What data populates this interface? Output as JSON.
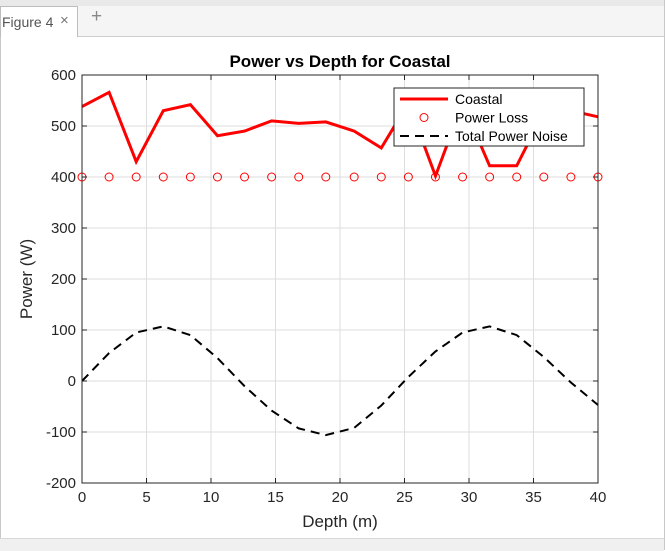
{
  "window": {
    "tab_label": "Figure 4",
    "tab_close_glyph": "×",
    "add_tab_glyph": "+"
  },
  "chart_data": {
    "type": "line",
    "title": "Power vs Depth for Coastal",
    "xlabel": "Depth (m)",
    "ylabel": "Power (W)",
    "xlim": [
      0,
      40
    ],
    "ylim": [
      -200,
      600
    ],
    "xticks": [
      0,
      5,
      10,
      15,
      20,
      25,
      30,
      35,
      40
    ],
    "yticks": [
      -200,
      -100,
      0,
      100,
      200,
      300,
      400,
      500,
      600
    ],
    "grid": true,
    "legend_position": "top-right",
    "series": [
      {
        "name": "Coastal",
        "style": "solid",
        "color": "#ff0000",
        "x": [
          0,
          2.1,
          4.2,
          6.3,
          8.4,
          10.5,
          12.6,
          14.7,
          16.8,
          18.9,
          21.1,
          23.2,
          25.3,
          27.4,
          29.5,
          31.6,
          33.7,
          35.8,
          37.9,
          40
        ],
        "values": [
          538,
          566,
          430,
          530,
          542,
          481,
          490,
          510,
          505,
          508,
          490,
          457,
          545,
          402,
          545,
          422,
          422,
          527,
          530,
          518
        ]
      },
      {
        "name": "Power Loss",
        "style": "markers",
        "marker": "circle",
        "color": "#ff0000",
        "x": [
          0,
          2.1,
          4.2,
          6.3,
          8.4,
          10.5,
          12.6,
          14.7,
          16.8,
          18.9,
          21.1,
          23.2,
          25.3,
          27.4,
          29.5,
          31.6,
          33.7,
          35.8,
          37.9,
          40
        ],
        "values": [
          400,
          400,
          400,
          400,
          400,
          400,
          400,
          400,
          400,
          400,
          400,
          400,
          400,
          400,
          400,
          400,
          400,
          400,
          400,
          400
        ]
      },
      {
        "name": "Total Power Noise",
        "style": "dashed",
        "color": "#000000",
        "x": [
          0,
          2.1,
          4.2,
          6.3,
          8.4,
          10.5,
          12.6,
          14.7,
          16.8,
          18.9,
          21.1,
          23.2,
          25.3,
          27.4,
          29.5,
          31.6,
          33.7,
          35.8,
          37.9,
          40
        ],
        "values": [
          0,
          55,
          95,
          107,
          90,
          45,
          -10,
          -58,
          -93,
          -106,
          -92,
          -48,
          8,
          58,
          95,
          107,
          90,
          47,
          -3,
          -47
        ]
      }
    ]
  }
}
